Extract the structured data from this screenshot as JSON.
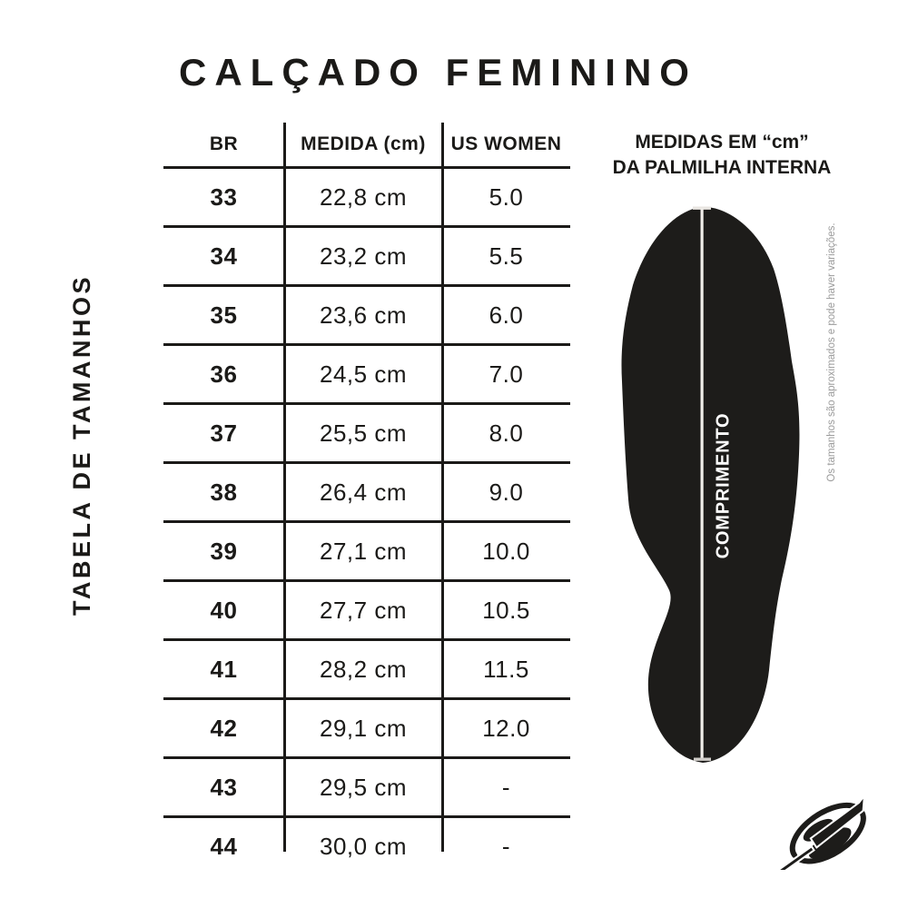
{
  "title": "CALÇADO FEMININO",
  "side_label": "TABELA DE TAMANHOS",
  "table": {
    "headers": [
      "BR",
      "MEDIDA (cm)",
      "US WOMEN"
    ],
    "rows": [
      [
        "33",
        "22,8 cm",
        "5.0"
      ],
      [
        "34",
        "23,2 cm",
        "5.5"
      ],
      [
        "35",
        "23,6 cm",
        "6.0"
      ],
      [
        "36",
        "24,5 cm",
        "7.0"
      ],
      [
        "37",
        "25,5 cm",
        "8.0"
      ],
      [
        "38",
        "26,4 cm",
        "9.0"
      ],
      [
        "39",
        "27,1 cm",
        "10.0"
      ],
      [
        "40",
        "27,7 cm",
        "10.5"
      ],
      [
        "41",
        "28,2 cm",
        "11.5"
      ],
      [
        "42",
        "29,1 cm",
        "12.0"
      ],
      [
        "43",
        "29,5 cm",
        "-"
      ],
      [
        "44",
        "30,0 cm",
        "-"
      ]
    ]
  },
  "insole": {
    "heading_line1": "MEDIDAS EM “cm”",
    "heading_line2": "DA PALMILHA INTERNA",
    "length_label": "COMPRIMENTO",
    "note": "Os tamanhos são aproximados e pode haver variações."
  },
  "colors": {
    "text": "#1b1a18",
    "table_lines": "#1b1a18",
    "silhouette": "#1d1c1a",
    "measure_line": "#f0ede9",
    "note_text": "#9b9b9b",
    "background": "#ffffff"
  }
}
